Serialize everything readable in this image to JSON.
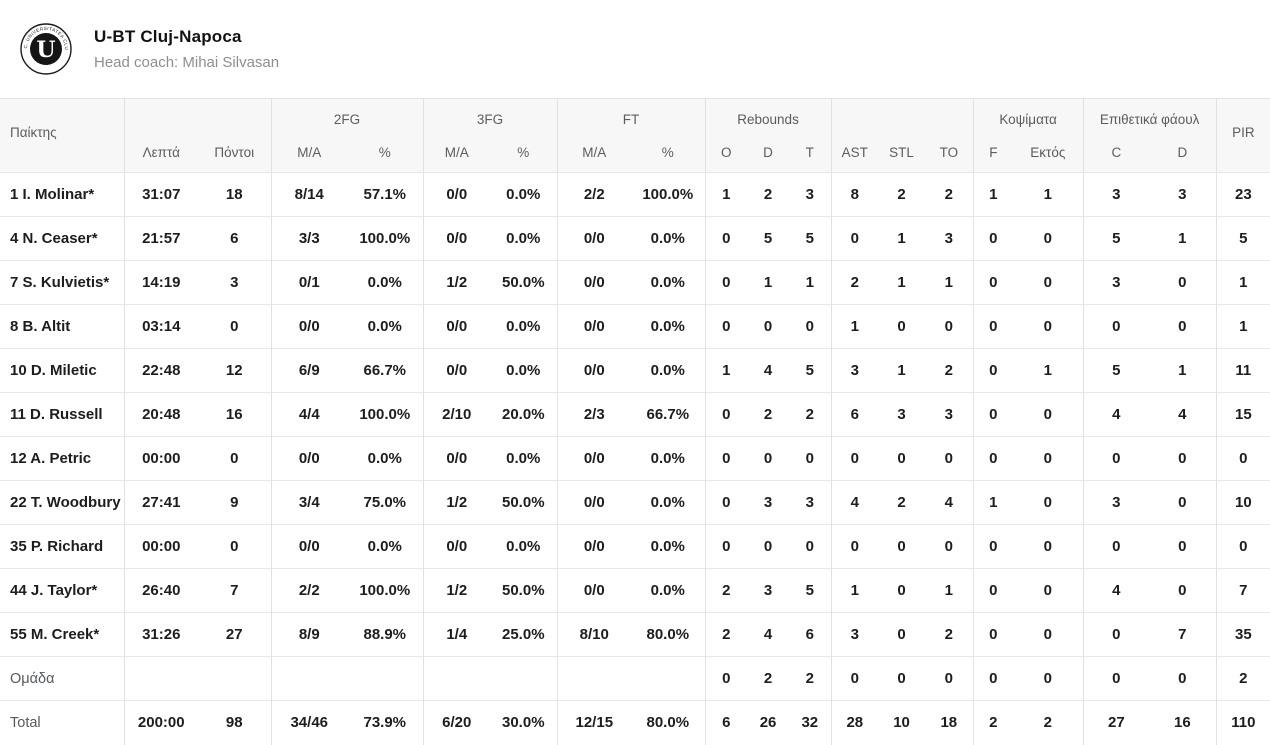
{
  "team": {
    "name": "U-BT Cluj-Napoca",
    "head_coach": "Head coach: Mihai Silvasan",
    "logo": {
      "letter": "U",
      "ring_top": "F.C. UNIVERSITATEA CLUJ",
      "ring_bottom": "1919"
    }
  },
  "table": {
    "group_headers": {
      "fg2": "2FG",
      "fg3": "3FG",
      "ft": "FT",
      "rebounds": "Rebounds",
      "blocks": "Κοψίματα",
      "offensive_fouls": "Επιθετικά φάουλ"
    },
    "column_headers": {
      "player": "Παίκτης",
      "minutes": "Λεπτά",
      "points": "Πόντοι",
      "ma": "M/A",
      "pct": "%",
      "o": "O",
      "d": "D",
      "t": "T",
      "ast": "AST",
      "stl": "STL",
      "to": "TO",
      "f": "F",
      "ektos": "Εκτός",
      "c": "C",
      "d2": "D",
      "pir": "PIR"
    },
    "rows": [
      {
        "player": "1 I. Molinar*",
        "muted": false,
        "cells": [
          "31:07",
          "18",
          "8/14",
          "57.1%",
          "0/0",
          "0.0%",
          "2/2",
          "100.0%",
          "1",
          "2",
          "3",
          "8",
          "2",
          "2",
          "1",
          "1",
          "3",
          "3",
          "23"
        ]
      },
      {
        "player": "4 N. Ceaser*",
        "muted": false,
        "cells": [
          "21:57",
          "6",
          "3/3",
          "100.0%",
          "0/0",
          "0.0%",
          "0/0",
          "0.0%",
          "0",
          "5",
          "5",
          "0",
          "1",
          "3",
          "0",
          "0",
          "5",
          "1",
          "5"
        ]
      },
      {
        "player": "7 S. Kulvietis*",
        "muted": false,
        "cells": [
          "14:19",
          "3",
          "0/1",
          "0.0%",
          "1/2",
          "50.0%",
          "0/0",
          "0.0%",
          "0",
          "1",
          "1",
          "2",
          "1",
          "1",
          "0",
          "0",
          "3",
          "0",
          "1"
        ]
      },
      {
        "player": "8 B. Altit",
        "muted": false,
        "cells": [
          "03:14",
          "0",
          "0/0",
          "0.0%",
          "0/0",
          "0.0%",
          "0/0",
          "0.0%",
          "0",
          "0",
          "0",
          "1",
          "0",
          "0",
          "0",
          "0",
          "0",
          "0",
          "1"
        ]
      },
      {
        "player": "10 D. Miletic",
        "muted": false,
        "cells": [
          "22:48",
          "12",
          "6/9",
          "66.7%",
          "0/0",
          "0.0%",
          "0/0",
          "0.0%",
          "1",
          "4",
          "5",
          "3",
          "1",
          "2",
          "0",
          "1",
          "5",
          "1",
          "11"
        ]
      },
      {
        "player": "11 D. Russell",
        "muted": false,
        "cells": [
          "20:48",
          "16",
          "4/4",
          "100.0%",
          "2/10",
          "20.0%",
          "2/3",
          "66.7%",
          "0",
          "2",
          "2",
          "6",
          "3",
          "3",
          "0",
          "0",
          "4",
          "4",
          "15"
        ]
      },
      {
        "player": "12 A. Petric",
        "muted": false,
        "cells": [
          "00:00",
          "0",
          "0/0",
          "0.0%",
          "0/0",
          "0.0%",
          "0/0",
          "0.0%",
          "0",
          "0",
          "0",
          "0",
          "0",
          "0",
          "0",
          "0",
          "0",
          "0",
          "0"
        ]
      },
      {
        "player": "22 T. Woodbury",
        "muted": false,
        "cells": [
          "27:41",
          "9",
          "3/4",
          "75.0%",
          "1/2",
          "50.0%",
          "0/0",
          "0.0%",
          "0",
          "3",
          "3",
          "4",
          "2",
          "4",
          "1",
          "0",
          "3",
          "0",
          "10"
        ]
      },
      {
        "player": "35 P. Richard",
        "muted": false,
        "cells": [
          "00:00",
          "0",
          "0/0",
          "0.0%",
          "0/0",
          "0.0%",
          "0/0",
          "0.0%",
          "0",
          "0",
          "0",
          "0",
          "0",
          "0",
          "0",
          "0",
          "0",
          "0",
          "0"
        ]
      },
      {
        "player": "44 J. Taylor*",
        "muted": false,
        "cells": [
          "26:40",
          "7",
          "2/2",
          "100.0%",
          "1/2",
          "50.0%",
          "0/0",
          "0.0%",
          "2",
          "3",
          "5",
          "1",
          "0",
          "1",
          "0",
          "0",
          "4",
          "0",
          "7"
        ]
      },
      {
        "player": "55 M. Creek*",
        "muted": false,
        "cells": [
          "31:26",
          "27",
          "8/9",
          "88.9%",
          "1/4",
          "25.0%",
          "8/10",
          "80.0%",
          "2",
          "4",
          "6",
          "3",
          "0",
          "2",
          "0",
          "0",
          "0",
          "7",
          "35"
        ]
      },
      {
        "player": "Ομάδα",
        "muted": true,
        "cells": [
          "",
          "",
          "",
          "",
          "",
          "",
          "",
          "",
          "0",
          "2",
          "2",
          "0",
          "0",
          "0",
          "0",
          "0",
          "0",
          "0",
          "2"
        ]
      }
    ],
    "total": {
      "player": "Total",
      "cells": [
        "200:00",
        "98",
        "34/46",
        "73.9%",
        "6/20",
        "30.0%",
        "12/15",
        "80.0%",
        "6",
        "26",
        "32",
        "28",
        "10",
        "18",
        "2",
        "2",
        "27",
        "16",
        "110"
      ]
    }
  }
}
